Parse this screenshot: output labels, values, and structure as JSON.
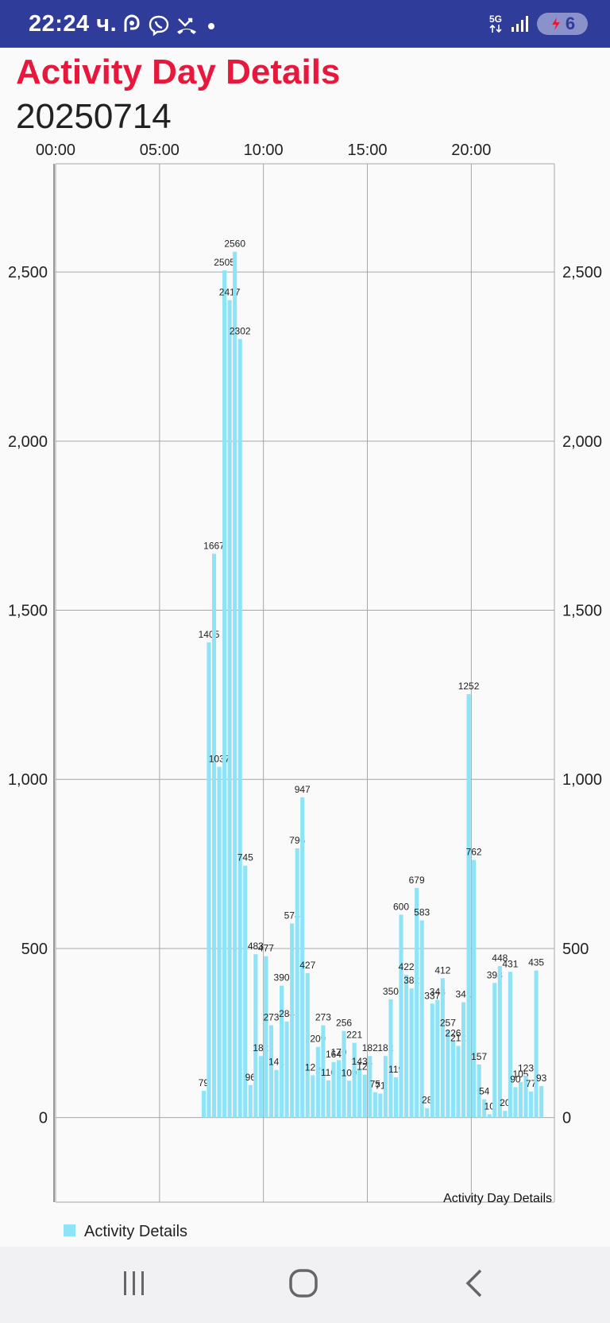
{
  "status_bar": {
    "time": "22:24 ч.",
    "network": "5G",
    "battery_level": "6",
    "icons": [
      "activity-app-icon",
      "viber-icon",
      "missed-call-icon",
      "notification-dot-icon",
      "5g-icon",
      "signal-icon",
      "battery-icon"
    ]
  },
  "header": {
    "title": "Activity Day Details",
    "date": "20250714"
  },
  "colors": {
    "status_bar": "#2f3c99",
    "title": "#e8173c",
    "bar": "#8ee4f6",
    "grid": "#a6a6a6"
  },
  "chart_data": {
    "type": "bar",
    "x_unit": "time of day",
    "bar_interval_minutes": 15,
    "first_bar_time": "07:00",
    "x_ticks": [
      "00:00",
      "05:00",
      "10:00",
      "15:00",
      "20:00"
    ],
    "xlim": [
      "00:00",
      "24:00"
    ],
    "y_ticks": [
      "0",
      "500",
      "1,000",
      "1,500",
      "2,000",
      "2,500"
    ],
    "ylim": [
      -250,
      2820
    ],
    "grid": true,
    "description": "Activity Day Details",
    "legend": {
      "position": "bottom-left",
      "label": "Activity Details"
    },
    "series": [
      {
        "name": "Activity Details",
        "values": [
          79,
          1405,
          1667,
          1037,
          2505,
          2417,
          2560,
          2302,
          745,
          96,
          483,
          182,
          477,
          273,
          141,
          390,
          284,
          574,
          796,
          947,
          427,
          125,
          209,
          273,
          110,
          164,
          170,
          256,
          109,
          221,
          143,
          127,
          182,
          75,
          71,
          182,
          350,
          119,
          600,
          422,
          382,
          679,
          583,
          28,
          337,
          348,
          412,
          257,
          226,
          212,
          341,
          1252,
          762,
          157,
          54,
          10,
          398,
          448,
          20,
          431,
          90,
          105,
          123,
          77,
          435,
          93
        ]
      }
    ]
  },
  "nav": {
    "recents_icon": "recent-apps-icon",
    "home_icon": "home-icon",
    "back_icon": "back-icon"
  }
}
